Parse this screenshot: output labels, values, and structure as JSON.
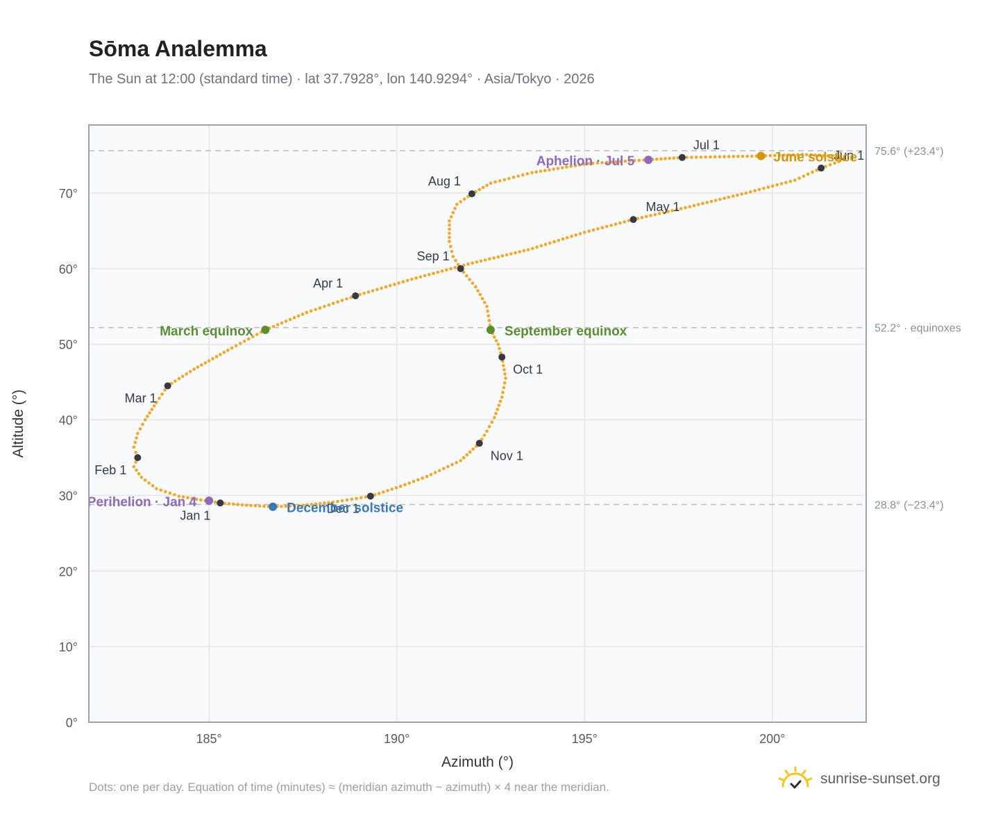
{
  "header": {
    "title": "Sōma Analemma",
    "subtitle": "The Sun at 12:00 (standard time) · lat 37.7928°, lon 140.9294° · Asia/Tokyo · 2026"
  },
  "footer": {
    "note": "Dots: one per day. Equation of time (minutes) ≈ (meridian azimuth − azimuth) × 4 near the meridian.",
    "brand": "sunrise-sunset.org",
    "brand_icon": "sun-logo-icon"
  },
  "colors": {
    "curve": "#f5a623",
    "month_marker": "#343a44",
    "equinox": "#5a8f2f",
    "june_solstice": "#d4950a",
    "december_solstice": "#3a78b5",
    "apsis": "#8e6ab8",
    "reference_line": "#b8bec6",
    "plot_background": "#f8fafc",
    "grid": "#e2e6ea"
  },
  "chart_data": {
    "type": "scatter",
    "xlabel": "Azimuth (°)",
    "ylabel": "Altitude (°)",
    "xlim": [
      181.8,
      202.5
    ],
    "ylim": [
      0,
      79
    ],
    "xticks": [
      185,
      190,
      195,
      200
    ],
    "yticks": [
      0,
      10,
      20,
      30,
      40,
      50,
      60,
      70
    ],
    "x_tick_labels": [
      "185°",
      "190°",
      "195°",
      "200°"
    ],
    "y_tick_labels": [
      "0°",
      "10°",
      "20°",
      "30°",
      "40°",
      "50°",
      "60°",
      "70°"
    ],
    "grid": true,
    "reference_lines": [
      {
        "y": 75.6,
        "label": "75.6° (+23.4°)"
      },
      {
        "y": 52.2,
        "label": "52.2° · equinoxes"
      },
      {
        "y": 28.8,
        "label": "28.8° (−23.4°)"
      }
    ],
    "month_markers": [
      {
        "label": "Jan 1",
        "az": 185.3,
        "alt": 29.0
      },
      {
        "label": "Feb 1",
        "az": 183.1,
        "alt": 35.0
      },
      {
        "label": "Mar 1",
        "az": 183.9,
        "alt": 44.5
      },
      {
        "label": "Apr 1",
        "az": 188.9,
        "alt": 56.4
      },
      {
        "label": "May 1",
        "az": 196.3,
        "alt": 66.5
      },
      {
        "label": "Jun 1",
        "az": 201.3,
        "alt": 73.3
      },
      {
        "label": "Jul 1",
        "az": 197.6,
        "alt": 74.7
      },
      {
        "label": "Aug 1",
        "az": 192.0,
        "alt": 69.9
      },
      {
        "label": "Sep 1",
        "az": 191.7,
        "alt": 60.0
      },
      {
        "label": "Oct 1",
        "az": 192.8,
        "alt": 48.3
      },
      {
        "label": "Nov 1",
        "az": 192.2,
        "alt": 36.9
      },
      {
        "label": "Dec 1",
        "az": 189.3,
        "alt": 29.9
      }
    ],
    "events": [
      {
        "label": "March equinox",
        "az": 186.5,
        "alt": 51.9,
        "kind": "equinox"
      },
      {
        "label": "September equinox",
        "az": 192.5,
        "alt": 51.9,
        "kind": "equinox"
      },
      {
        "label": "June solstice",
        "az": 199.7,
        "alt": 74.9,
        "kind": "june_solstice"
      },
      {
        "label": "December solstice",
        "az": 186.7,
        "alt": 28.5,
        "kind": "december_solstice"
      },
      {
        "label": "Aphelion · Jul 5",
        "az": 196.7,
        "alt": 74.4,
        "kind": "apsis"
      },
      {
        "label": "Perihelion · Jan 4",
        "az": 185.0,
        "alt": 29.3,
        "kind": "apsis"
      }
    ],
    "series": [
      {
        "points_note": "",
        "values": [
          [
            185.3,
            29.0
          ],
          [
            184.9,
            29.3
          ],
          [
            184.2,
            29.9
          ],
          [
            183.6,
            30.9
          ],
          [
            183.2,
            32.4
          ],
          [
            183.0,
            33.8
          ],
          [
            183.1,
            35.0
          ],
          [
            183.0,
            36.4
          ],
          [
            183.1,
            38.2
          ],
          [
            183.3,
            40.0
          ],
          [
            183.6,
            42.3
          ],
          [
            183.9,
            44.5
          ],
          [
            184.6,
            46.7
          ],
          [
            185.5,
            49.2
          ],
          [
            186.5,
            51.9
          ],
          [
            187.6,
            54.2
          ],
          [
            188.9,
            56.4
          ],
          [
            190.4,
            58.6
          ],
          [
            191.9,
            60.6
          ],
          [
            193.5,
            62.5
          ],
          [
            195.0,
            64.8
          ],
          [
            196.3,
            66.5
          ],
          [
            197.8,
            68.2
          ],
          [
            199.3,
            70.0
          ],
          [
            200.6,
            71.7
          ],
          [
            201.3,
            73.3
          ],
          [
            201.9,
            74.4
          ],
          [
            201.6,
            74.9
          ],
          [
            200.8,
            75.1
          ],
          [
            199.7,
            74.9
          ],
          [
            198.6,
            74.8
          ],
          [
            197.6,
            74.7
          ],
          [
            196.7,
            74.4
          ],
          [
            195.1,
            73.9
          ],
          [
            193.6,
            72.7
          ],
          [
            192.5,
            71.3
          ],
          [
            192.0,
            69.9
          ],
          [
            191.6,
            68.5
          ],
          [
            191.4,
            66.3
          ],
          [
            191.4,
            63.6
          ],
          [
            191.5,
            61.6
          ],
          [
            191.7,
            60.0
          ],
          [
            192.1,
            57.6
          ],
          [
            192.4,
            55.0
          ],
          [
            192.5,
            51.9
          ],
          [
            192.7,
            50.0
          ],
          [
            192.8,
            48.3
          ],
          [
            192.9,
            45.5
          ],
          [
            192.8,
            43.0
          ],
          [
            192.6,
            40.3
          ],
          [
            192.4,
            38.5
          ],
          [
            192.2,
            36.9
          ],
          [
            191.7,
            34.6
          ],
          [
            190.8,
            32.5
          ],
          [
            190.1,
            31.2
          ],
          [
            189.3,
            29.9
          ],
          [
            188.3,
            29.1
          ],
          [
            187.5,
            28.7
          ],
          [
            186.7,
            28.5
          ],
          [
            186.0,
            28.7
          ],
          [
            185.3,
            29.0
          ]
        ]
      }
    ]
  }
}
